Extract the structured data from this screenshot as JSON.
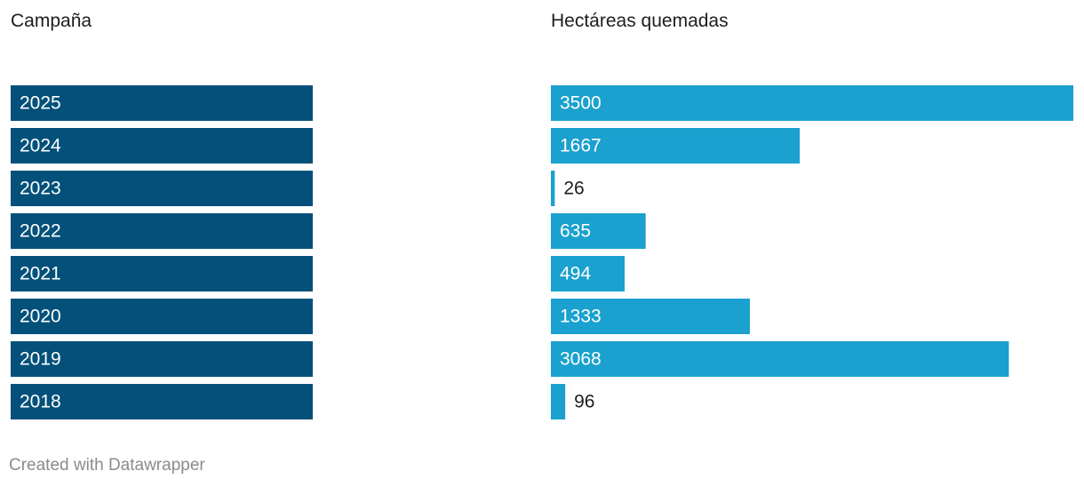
{
  "chart_data": {
    "type": "table",
    "columns": [
      "Campaña",
      "Hectáreas quemadas"
    ],
    "categories": [
      "2025",
      "2024",
      "2023",
      "2022",
      "2021",
      "2020",
      "2019",
      "2018"
    ],
    "values": [
      3500,
      1667,
      26,
      635,
      494,
      1333,
      3068,
      96
    ],
    "value_labels": [
      "3500",
      "1667",
      "26",
      "635",
      "494",
      "1333",
      "3068",
      "96"
    ],
    "xlim": [
      0,
      3500
    ],
    "grid": false,
    "legend": "none",
    "colors": {
      "category_cell": "#03517a",
      "value_bar": "#1aa1cf",
      "label_inside": "#ffffff",
      "label_outside": "#1d1d1d"
    }
  },
  "footer": {
    "credit": "Created with Datawrapper"
  }
}
